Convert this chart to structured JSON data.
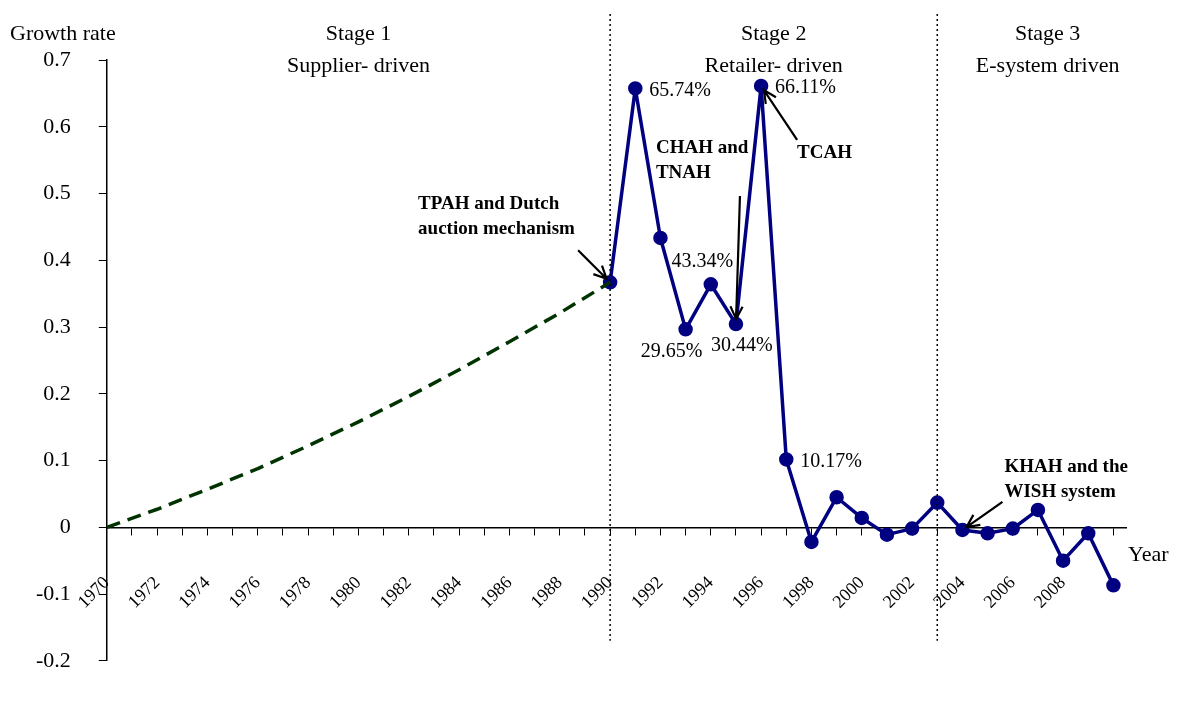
{
  "chart_data": {
    "type": "line",
    "xlabel": "Year",
    "ylabel": "Growth rate",
    "xlim": [
      1970,
      2010.5
    ],
    "xticks": [
      1970,
      {
        "value": 1971,
        "label": null
      },
      1972,
      {
        "value": 1973,
        "label": null
      },
      1974,
      {
        "value": 1975,
        "label": null
      },
      1976,
      {
        "value": 1977,
        "label": null
      },
      1978,
      {
        "value": 1979,
        "label": null
      },
      1980,
      {
        "value": 1981,
        "label": null
      },
      1982,
      {
        "value": 1983,
        "label": null
      },
      1984,
      {
        "value": 1985,
        "label": null
      },
      1986,
      {
        "value": 1987,
        "label": null
      },
      1988,
      {
        "value": 1989,
        "label": null
      },
      1990,
      {
        "value": 1991,
        "label": null
      },
      1992,
      {
        "value": 1993,
        "label": null
      },
      1994,
      {
        "value": 1995,
        "label": null
      },
      1996,
      {
        "value": 1997,
        "label": null
      },
      1998,
      {
        "value": 1999,
        "label": null
      },
      2000,
      {
        "value": 2001,
        "label": null
      },
      2002,
      {
        "value": 2003,
        "label": null
      },
      2004,
      {
        "value": 2005,
        "label": null
      },
      2006,
      {
        "value": 2007,
        "label": null
      },
      2008,
      {
        "value": 2009,
        "label": null
      },
      {
        "value": 2010,
        "label": null
      }
    ],
    "ylim": [
      -0.2,
      0.7
    ],
    "yticks": [
      -0.2,
      -0.1,
      0,
      0.1,
      0.2,
      0.3,
      0.4,
      0.5,
      0.6,
      0.7
    ],
    "grid": false,
    "legend": false,
    "series": [
      {
        "color": "#003300",
        "line_style": "dashed",
        "marker": "none",
        "x": [
          1970,
          1972,
          1974,
          1976,
          1978,
          1980,
          1982,
          1984,
          1986,
          1988,
          1990
        ],
        "values": [
          0,
          0.027,
          0.057,
          0.088,
          0.122,
          0.158,
          0.196,
          0.236,
          0.278,
          0.321,
          0.367
        ]
      },
      {
        "color": "#000080",
        "line_style": "solid",
        "marker": "circle",
        "x": [
          1990,
          1991,
          1992,
          1993,
          1994,
          1995,
          1996,
          1997,
          1998,
          1999,
          2000,
          2001,
          2002,
          2003,
          2004,
          2005,
          2006,
          2007,
          2008,
          2009,
          2010
        ],
        "values": [
          0.367,
          0.6574,
          0.4334,
          0.2965,
          0.364,
          0.3044,
          0.6611,
          0.1017,
          -0.022,
          0.045,
          0.014,
          -0.011,
          -0.002,
          0.037,
          -0.004,
          -0.009,
          -0.002,
          0.026,
          -0.05,
          -0.009,
          -0.087
        ],
        "value_labels": [
          null,
          "65.74%",
          "43.34%",
          "29.65%",
          null,
          "30.44%",
          "66.11%",
          "10.17%",
          null,
          null,
          null,
          null,
          null,
          null,
          null,
          null,
          null,
          null,
          null,
          null,
          null
        ]
      }
    ],
    "ref_lines": [
      {
        "axis": "x",
        "value": 1990,
        "color": "#000000",
        "line_style": "dotted"
      },
      {
        "axis": "x",
        "value": 2003,
        "color": "#000000",
        "line_style": "dotted"
      }
    ],
    "annotations": [
      "Stage 1",
      "Supplier- driven",
      "Stage 2",
      "Retailer- driven",
      "Stage 3",
      "E-system driven",
      {
        "text": "TPAH and Dutch auction mechanism",
        "x": 1990,
        "y": 0.367
      },
      {
        "text": "CHAH and TNAH",
        "x": 1995,
        "y": 0.3044
      },
      {
        "text": "TCAH",
        "x": 1996,
        "y": 0.6611
      },
      {
        "text": "KHAH and the WISH system",
        "x": 2004,
        "y": -0.004
      }
    ]
  }
}
